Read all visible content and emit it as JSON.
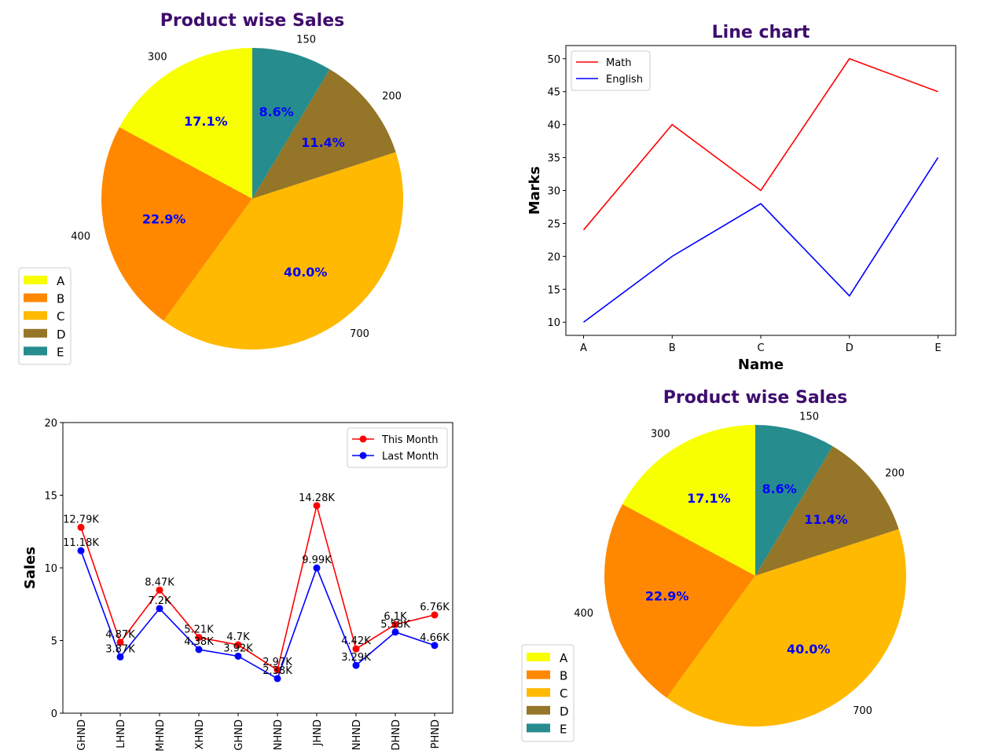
{
  "chart_data": [
    {
      "type": "pie",
      "title": "Product wise Sales",
      "labels": [
        "A",
        "B",
        "C",
        "D",
        "E"
      ],
      "values": [
        300,
        400,
        700,
        200,
        150
      ],
      "value_labels": [
        "300",
        "400",
        "700",
        "200",
        "150"
      ],
      "percent_labels": [
        "17.1%",
        "22.9%",
        "40.0%",
        "11.4%",
        "8.6%"
      ],
      "colors": [
        "#f8ff00",
        "#ff8800",
        "#ffb900",
        "#957527",
        "#268c8e"
      ],
      "start_angle_deg": 90,
      "direction": "counterclockwise",
      "legend": "lower-left"
    },
    {
      "type": "line",
      "title": "Line chart",
      "xlabel": "Name",
      "ylabel": "Marks",
      "categories": [
        "A",
        "B",
        "C",
        "D",
        "E"
      ],
      "series": [
        {
          "name": "Math",
          "values": [
            24,
            40,
            30,
            50,
            45
          ],
          "color": "#ff0000"
        },
        {
          "name": "English",
          "values": [
            10,
            20,
            28,
            14,
            35
          ],
          "color": "#0000ff"
        }
      ],
      "ylim": [
        8,
        52
      ],
      "yticks": [
        "10",
        "15",
        "20",
        "25",
        "30",
        "35",
        "40",
        "45",
        "50"
      ],
      "legend": "upper-left"
    },
    {
      "type": "line",
      "title": "",
      "xlabel": "",
      "ylabel": "Sales",
      "categories": [
        "GHND",
        "LHND",
        "MHND",
        "XHND",
        "GHND",
        "NHND",
        "JHND",
        "NHND",
        "DHND",
        "PHND"
      ],
      "series": [
        {
          "name": "This Month",
          "values": [
            12.79,
            4.87,
            8.47,
            5.21,
            4.7,
            2.97,
            14.28,
            4.42,
            6.1,
            6.76
          ],
          "labels": [
            "12.79K",
            "4.87K",
            "8.47K",
            "5.21K",
            "4.7K",
            "2.97K",
            "14.28K",
            "4.42K",
            "6.1K",
            "6.76K"
          ],
          "color": "#ff0000"
        },
        {
          "name": "Last Month",
          "values": [
            11.18,
            3.87,
            7.2,
            4.38,
            3.92,
            2.38,
            9.99,
            3.29,
            5.58,
            4.66
          ],
          "labels": [
            "11.18K",
            "3.87K",
            "7.2K",
            "4.38K",
            "3.92K",
            "2.38K",
            "9.99K",
            "3.29K",
            "5.58K",
            "4.66K"
          ],
          "color": "#0000ff"
        }
      ],
      "ylim": [
        0,
        20
      ],
      "yticks": [
        "0",
        "5",
        "10",
        "15",
        "20"
      ],
      "markers": true,
      "legend": "upper-right"
    },
    {
      "type": "pie",
      "title": "Product wise Sales",
      "labels": [
        "A",
        "B",
        "C",
        "D",
        "E"
      ],
      "values": [
        300,
        400,
        700,
        200,
        150
      ],
      "value_labels": [
        "300",
        "400",
        "700",
        "200",
        "150"
      ],
      "percent_labels": [
        "17.1%",
        "22.9%",
        "40.0%",
        "11.4%",
        "8.6%"
      ],
      "colors": [
        "#f8ff00",
        "#ff8800",
        "#ffb900",
        "#957527",
        "#268c8e"
      ],
      "start_angle_deg": 90,
      "direction": "counterclockwise",
      "legend": "lower-left"
    }
  ]
}
